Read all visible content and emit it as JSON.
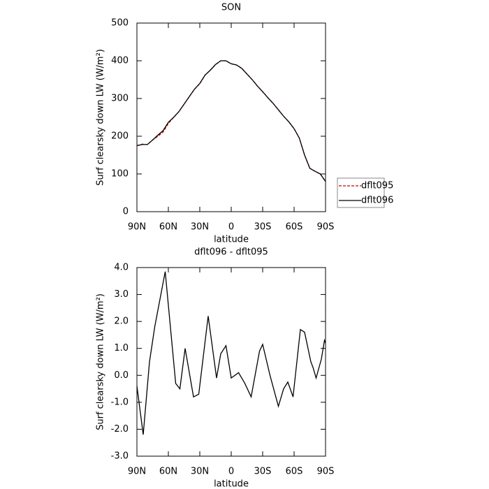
{
  "chart_data": [
    {
      "type": "line",
      "title": "SON",
      "xlabel": "latitude",
      "ylabel": "Surf clearsky down LW (W/m²)",
      "x": [
        90,
        85,
        80,
        75,
        70,
        65,
        60,
        55,
        50,
        45,
        40,
        35,
        30,
        25,
        20,
        15,
        10,
        5,
        0,
        -5,
        -10,
        -15,
        -20,
        -25,
        -30,
        -35,
        -40,
        -45,
        -50,
        -55,
        -60,
        -65,
        -70,
        -75,
        -80,
        -85,
        -90
      ],
      "series": [
        {
          "name": "dflt095",
          "color": "#cc0000",
          "style": "dashed",
          "values": [
            175,
            179,
            178,
            190,
            200,
            211,
            234,
            250,
            265,
            285,
            305,
            325,
            339,
            362,
            375,
            390,
            400,
            400,
            392,
            389,
            380,
            365,
            350,
            333,
            318,
            302,
            287,
            270,
            253,
            238,
            220,
            195,
            150,
            115,
            107,
            100,
            80
          ]
        },
        {
          "name": "dflt096",
          "color": "#000000",
          "style": "solid",
          "values": [
            175,
            178,
            178,
            190,
            203,
            215,
            237,
            250,
            265,
            285,
            305,
            325,
            340,
            362,
            375,
            390,
            400,
            400,
            392,
            389,
            380,
            365,
            350,
            333,
            318,
            302,
            287,
            270,
            253,
            238,
            220,
            195,
            150,
            115,
            107,
            100,
            80
          ]
        }
      ],
      "xlim": [
        90,
        -90
      ],
      "ylim": [
        0,
        500
      ],
      "xticks": [
        {
          "value": 90,
          "label": "90N"
        },
        {
          "value": 60,
          "label": "60N"
        },
        {
          "value": 30,
          "label": "30N"
        },
        0,
        {
          "value": -30,
          "label": "30S"
        },
        {
          "value": -60,
          "label": "60S"
        },
        {
          "value": -90,
          "label": "90S"
        }
      ],
      "yticks": [
        0,
        100,
        200,
        300,
        400,
        500
      ],
      "legend": "right"
    },
    {
      "type": "line",
      "title": "dflt096 - dflt095",
      "xlabel": "latitude",
      "ylabel": "Surf clearsky down LW (W/m²)",
      "x": [
        90,
        84,
        78,
        73,
        63,
        53,
        49,
        44,
        36,
        31,
        22,
        14,
        10,
        5,
        0,
        -7,
        -13,
        -19,
        -27,
        -30,
        -37,
        -45,
        -50,
        -54,
        -59,
        -66,
        -70,
        -76,
        -78,
        -81,
        -86,
        -89,
        -90
      ],
      "series": [
        {
          "name": "dflt096 - dflt095",
          "color": "#000000",
          "style": "solid",
          "values": [
            -0.4,
            -2.2,
            0.5,
            1.8,
            3.85,
            -0.3,
            -0.5,
            1.0,
            -0.8,
            -0.7,
            2.2,
            -0.1,
            0.8,
            1.1,
            -0.1,
            0.1,
            -0.3,
            -0.8,
            0.9,
            1.15,
            0.0,
            -1.15,
            -0.5,
            -0.25,
            -0.8,
            1.7,
            1.6,
            0.5,
            0.3,
            -0.1,
            0.6,
            1.3,
            1.2
          ]
        }
      ],
      "xlim": [
        90,
        -90
      ],
      "ylim": [
        -3,
        4
      ],
      "xticks": [
        {
          "value": 90,
          "label": "90N"
        },
        {
          "value": 60,
          "label": "60N"
        },
        {
          "value": 30,
          "label": "30N"
        },
        0,
        {
          "value": -30,
          "label": "30S"
        },
        {
          "value": -60,
          "label": "60S"
        },
        {
          "value": -90,
          "label": "90S"
        }
      ],
      "yticks": [
        {
          "value": 4,
          "label": "4.0"
        },
        {
          "value": 3,
          "label": "3.0"
        },
        {
          "value": 2,
          "label": "2.0"
        },
        {
          "value": 1,
          "label": "1.0"
        },
        {
          "value": 0,
          "label": "0.0"
        },
        {
          "value": -1,
          "label": "-1.0"
        },
        {
          "value": -2,
          "label": "-2.0"
        },
        {
          "value": -3,
          "label": "-3.0"
        }
      ]
    }
  ]
}
